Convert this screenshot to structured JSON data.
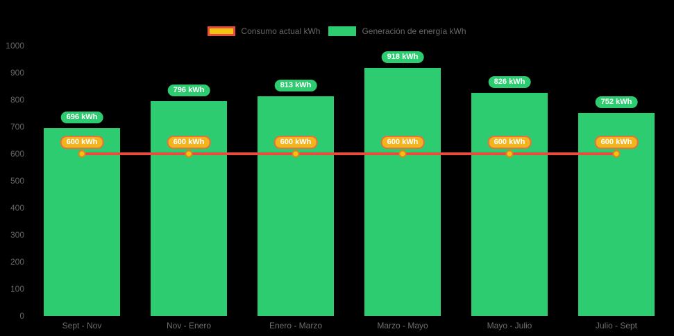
{
  "chart": {
    "background": "#000000",
    "legend": {
      "text_color": "#666666",
      "items": [
        {
          "label": "Consumo actual kWh",
          "swatch_fill": "#f1c40f",
          "swatch_border": "#e74c3c",
          "series_type": "line"
        },
        {
          "label": "Generación de energía kWh",
          "swatch_fill": "#2ecc71",
          "swatch_border": "#2ecc71",
          "series_type": "bar"
        }
      ]
    }
  },
  "chart_data": {
    "type": "bar",
    "title": "",
    "xlabel": "",
    "ylabel": "",
    "categories": [
      "Sept - Nov",
      "Nov - Enero",
      "Enero - Marzo",
      "Marzo - Mayo",
      "Mayo - Julio",
      "Julio - Sept"
    ],
    "series": [
      {
        "name": "Generación de energía kWh",
        "type": "bar",
        "color": "#2ecc71",
        "values": [
          696,
          796,
          813,
          918,
          826,
          752
        ],
        "point_labels": [
          "696 kWh",
          "796 kWh",
          "813 kWh",
          "918 kWh",
          "826 kWh",
          "752 kWh"
        ],
        "label_bg": "#2ecc71",
        "label_text_color": "#ffffff"
      },
      {
        "name": "Consumo actual kWh",
        "type": "line",
        "color": "#e74c3c",
        "values": [
          600,
          600,
          600,
          600,
          600,
          600
        ],
        "point_labels": [
          "600 kWh",
          "600 kWh",
          "600 kWh",
          "600 kWh",
          "600 kWh",
          "600 kWh"
        ],
        "point_fill": "#f1c40f",
        "point_border": "#e67e22",
        "label_bg": "#f2b51d",
        "label_border": "#e8703a",
        "label_text_color": "#ffffff"
      }
    ],
    "ylim": [
      0,
      1000
    ],
    "yticks": [
      "0",
      "100",
      "200",
      "300",
      "400",
      "500",
      "600",
      "700",
      "800",
      "900",
      "1000"
    ],
    "ytick_color": "#666666",
    "xtick_color": "#6f6f6f",
    "grid": false,
    "legend_position": "top"
  }
}
